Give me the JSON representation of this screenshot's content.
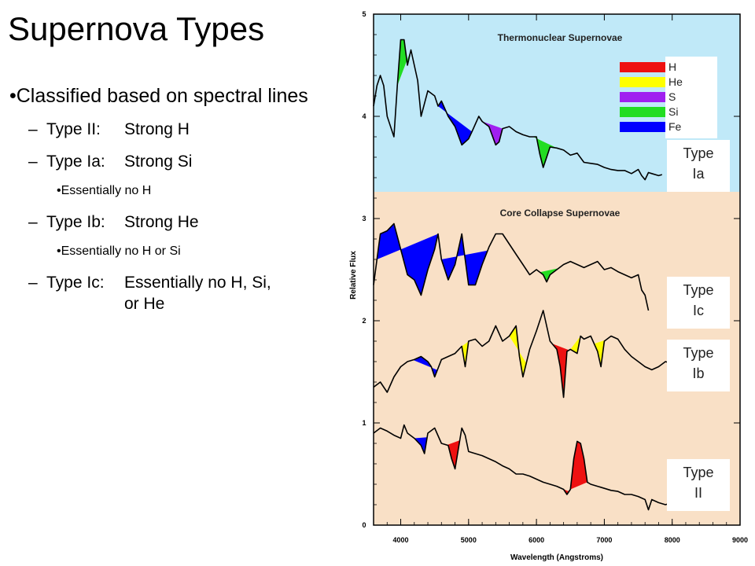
{
  "title": "Supernova Types",
  "bullets": [
    {
      "level": 1,
      "text": "•Classified based on spectral lines"
    },
    {
      "level": 2,
      "dash": "–",
      "label": "Type II:",
      "desc": "Strong H"
    },
    {
      "level": 2,
      "dash": "–",
      "label": "Type Ia:",
      "desc": "Strong Si"
    },
    {
      "level": 3,
      "text": "•Essentially no H"
    },
    {
      "level": 2,
      "dash": "–",
      "label": "Type Ib:",
      "desc": "Strong He"
    },
    {
      "level": 3,
      "text": "•Essentially no H or Si"
    },
    {
      "level": 2,
      "dash": "–",
      "label": "Type Ic:",
      "desc": "Essentially no H, Si, or He"
    }
  ],
  "chart_data": {
    "type": "line",
    "xlabel": "Wavelength (Angstroms)",
    "ylabel": "Relative Flux",
    "xlim": [
      3600,
      9000
    ],
    "ylim": [
      0,
      5
    ],
    "x_ticks": [
      4000,
      5000,
      6000,
      7000,
      8000,
      9000
    ],
    "y_ticks": [
      0,
      1,
      2,
      3,
      4,
      5
    ],
    "regions": [
      {
        "name": "Thermonuclear Supernovae",
        "y_range": [
          3.3,
          5
        ],
        "color": "#c0e9f8"
      },
      {
        "name": "Core Collapse Supernovae",
        "y_range": [
          0,
          3.3
        ],
        "color": "#f9e0c6"
      }
    ],
    "legend": [
      {
        "element": "H",
        "color": "#ee1111"
      },
      {
        "element": "He",
        "color": "#ffff00"
      },
      {
        "element": "S",
        "color": "#a020f0"
      },
      {
        "element": "Si",
        "color": "#22dd22"
      },
      {
        "element": "Fe",
        "color": "#0000ff"
      }
    ],
    "series": [
      {
        "name": "Type Ia",
        "label": "Type Ia",
        "x": [
          3600,
          3650,
          3700,
          3750,
          3800,
          3900,
          3950,
          4000,
          4050,
          4100,
          4150,
          4200,
          4250,
          4300,
          4400,
          4500,
          4550,
          4600,
          4700,
          4800,
          4900,
          5000,
          5050,
          5150,
          5200,
          5300,
          5400,
          5450,
          5500,
          5600,
          5700,
          5800,
          5900,
          6000,
          6050,
          6100,
          6150,
          6200,
          6300,
          6400,
          6500,
          6600,
          6700,
          6800,
          6900,
          7000,
          7100,
          7200,
          7300,
          7400,
          7500,
          7550,
          7600,
          7650,
          7700,
          7800,
          7850
        ],
        "y": [
          4.1,
          4.3,
          4.4,
          4.3,
          4.0,
          3.8,
          4.3,
          4.75,
          4.75,
          4.5,
          4.65,
          4.5,
          4.35,
          4.0,
          4.25,
          4.2,
          4.1,
          4.15,
          4.0,
          3.9,
          3.72,
          3.78,
          3.85,
          4.0,
          3.95,
          3.9,
          3.72,
          3.75,
          3.88,
          3.9,
          3.85,
          3.82,
          3.8,
          3.8,
          3.63,
          3.5,
          3.6,
          3.7,
          3.69,
          3.67,
          3.62,
          3.64,
          3.55,
          3.54,
          3.53,
          3.5,
          3.48,
          3.47,
          3.47,
          3.44,
          3.48,
          3.42,
          3.38,
          3.45,
          3.44,
          3.42,
          3.43
        ]
      },
      {
        "name": "Type Ic",
        "label": "Type Ic",
        "x": [
          3600,
          3700,
          3800,
          3900,
          4000,
          4100,
          4200,
          4300,
          4400,
          4500,
          4550,
          4600,
          4700,
          4800,
          4900,
          5000,
          5100,
          5200,
          5300,
          5400,
          5500,
          5600,
          5700,
          5800,
          5900,
          6000,
          6100,
          6150,
          6200,
          6300,
          6400,
          6500,
          6600,
          6700,
          6800,
          6900,
          7000,
          7100,
          7200,
          7300,
          7400,
          7500,
          7550,
          7600,
          7650
        ],
        "y": [
          2.35,
          2.85,
          2.88,
          2.95,
          2.7,
          2.45,
          2.4,
          2.25,
          2.5,
          2.7,
          2.85,
          2.6,
          2.4,
          2.55,
          2.85,
          2.35,
          2.35,
          2.55,
          2.72,
          2.85,
          2.85,
          2.75,
          2.65,
          2.55,
          2.45,
          2.5,
          2.45,
          2.38,
          2.45,
          2.5,
          2.55,
          2.58,
          2.55,
          2.52,
          2.55,
          2.58,
          2.5,
          2.52,
          2.48,
          2.45,
          2.42,
          2.45,
          2.3,
          2.25,
          2.1
        ]
      },
      {
        "name": "Type Ib",
        "label": "Type Ib",
        "x": [
          3600,
          3700,
          3800,
          3900,
          4000,
          4100,
          4200,
          4300,
          4400,
          4450,
          4500,
          4600,
          4700,
          4800,
          4900,
          4950,
          5000,
          5100,
          5200,
          5300,
          5400,
          5500,
          5600,
          5700,
          5750,
          5800,
          5900,
          6000,
          6100,
          6200,
          6300,
          6350,
          6400,
          6450,
          6500,
          6600,
          6650,
          6700,
          6800,
          6900,
          6950,
          7000,
          7100,
          7200,
          7300,
          7400,
          7500,
          7600,
          7700,
          7800,
          7900,
          8000
        ],
        "y": [
          1.35,
          1.4,
          1.3,
          1.45,
          1.55,
          1.6,
          1.62,
          1.65,
          1.6,
          1.55,
          1.45,
          1.62,
          1.65,
          1.68,
          1.75,
          1.55,
          1.8,
          1.82,
          1.75,
          1.8,
          1.95,
          1.8,
          1.85,
          1.95,
          1.65,
          1.45,
          1.72,
          1.9,
          2.1,
          1.8,
          1.72,
          1.55,
          1.25,
          1.7,
          1.72,
          1.68,
          1.85,
          1.82,
          1.85,
          1.7,
          1.55,
          1.8,
          1.85,
          1.82,
          1.72,
          1.65,
          1.6,
          1.55,
          1.52,
          1.55,
          1.6,
          1.58
        ]
      },
      {
        "name": "Type II",
        "label": "Type II",
        "x": [
          3600,
          3700,
          3800,
          3900,
          4000,
          4050,
          4100,
          4200,
          4300,
          4350,
          4400,
          4500,
          4600,
          4700,
          4750,
          4800,
          4850,
          4900,
          4950,
          5000,
          5100,
          5200,
          5300,
          5400,
          5500,
          5600,
          5700,
          5800,
          5900,
          6000,
          6100,
          6200,
          6300,
          6400,
          6450,
          6500,
          6550,
          6600,
          6650,
          6700,
          6750,
          6800,
          6900,
          7000,
          7100,
          7200,
          7300,
          7400,
          7500,
          7600,
          7650,
          7700,
          7800,
          7900,
          8000
        ],
        "y": [
          0.9,
          0.95,
          0.92,
          0.88,
          0.85,
          0.98,
          0.9,
          0.85,
          0.78,
          0.7,
          0.9,
          0.95,
          0.8,
          0.78,
          0.65,
          0.55,
          0.75,
          0.95,
          0.88,
          0.72,
          0.7,
          0.68,
          0.65,
          0.62,
          0.58,
          0.55,
          0.5,
          0.5,
          0.48,
          0.45,
          0.42,
          0.4,
          0.38,
          0.35,
          0.3,
          0.35,
          0.65,
          0.82,
          0.8,
          0.65,
          0.42,
          0.4,
          0.38,
          0.36,
          0.34,
          0.33,
          0.3,
          0.3,
          0.28,
          0.25,
          0.15,
          0.25,
          0.22,
          0.2,
          0.22
        ]
      }
    ],
    "features": [
      {
        "series": 0,
        "element": "Si",
        "x_range": [
          3950,
          4150
        ]
      },
      {
        "series": 0,
        "element": "Fe",
        "x_range": [
          4550,
          5050
        ]
      },
      {
        "series": 0,
        "element": "S",
        "x_range": [
          5200,
          5500
        ]
      },
      {
        "series": 0,
        "element": "Si",
        "x_range": [
          5950,
          6300
        ]
      },
      {
        "series": 1,
        "element": "Fe",
        "x_range": [
          3650,
          4550
        ]
      },
      {
        "series": 1,
        "element": "Fe",
        "x_range": [
          4600,
          5280
        ]
      },
      {
        "series": 1,
        "element": "Si",
        "x_range": [
          6050,
          6330
        ]
      },
      {
        "series": 2,
        "element": "Fe",
        "x_range": [
          4180,
          4540
        ]
      },
      {
        "series": 2,
        "element": "He",
        "x_range": [
          4900,
          5010
        ]
      },
      {
        "series": 2,
        "element": "He",
        "x_range": [
          5600,
          5850
        ]
      },
      {
        "series": 2,
        "element": "H",
        "x_range": [
          6230,
          6480
        ]
      },
      {
        "series": 2,
        "element": "He",
        "x_range": [
          6500,
          6650
        ]
      },
      {
        "series": 2,
        "element": "He",
        "x_range": [
          6850,
          7030
        ]
      },
      {
        "series": 3,
        "element": "Fe",
        "x_range": [
          4200,
          4390
        ]
      },
      {
        "series": 3,
        "element": "H",
        "x_range": [
          4680,
          4870
        ]
      },
      {
        "series": 3,
        "element": "H",
        "x_range": [
          6380,
          6480
        ]
      },
      {
        "series": 3,
        "element": "H",
        "x_range": [
          6500,
          6750
        ]
      }
    ]
  }
}
